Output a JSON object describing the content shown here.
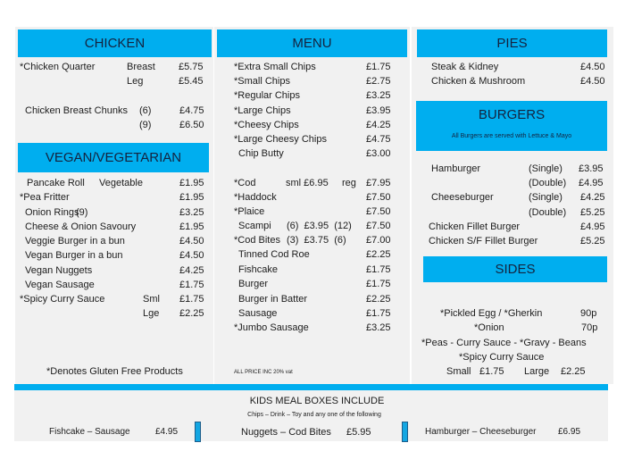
{
  "colors": {
    "accent": "#00aeef",
    "panel": "#f1f1f1"
  },
  "chicken": {
    "title": "CHICKEN",
    "quarter": {
      "name": "*Chicken Quarter",
      "breast": "Breast",
      "breast_price": "£5.75",
      "leg": "Leg",
      "leg_price": "£5.45"
    },
    "chunks": {
      "name": "Chicken Breast Chunks",
      "six": "(6)",
      "six_price": "£4.75",
      "nine": "(9)",
      "nine_price": "£6.50"
    }
  },
  "vegan": {
    "title": "VEGAN/VEGETARIAN",
    "items": [
      {
        "name": "Pancake Roll",
        "opt": "Vegetable",
        "price": "£1.95"
      },
      {
        "name": "*Pea Fritter",
        "price": "£1.95"
      },
      {
        "name": "Onion Rings",
        "opt": "(9)",
        "price": "£3.25"
      },
      {
        "name": "Cheese & Onion Savoury",
        "price": "£1.95"
      },
      {
        "name": "Veggie Burger in a bun",
        "price": "£4.50"
      },
      {
        "name": "Vegan Burger in a bun",
        "price": "£4.50"
      },
      {
        "name": "Vegan Nuggets",
        "price": "£4.25"
      },
      {
        "name": "Vegan Sausage",
        "price": "£1.75"
      },
      {
        "name": "*Spicy Curry Sauce",
        "opt": "Sml",
        "price": "£1.75"
      },
      {
        "opt": "Lge",
        "price": "£2.25"
      }
    ],
    "footnote": "*Denotes Gluten Free Products"
  },
  "menu": {
    "title": "MENU",
    "chips": [
      {
        "name": "*Extra Small Chips",
        "price": "£1.75"
      },
      {
        "name": "*Small Chips",
        "price": "£2.75"
      },
      {
        "name": "*Regular Chips",
        "price": "£3.25"
      },
      {
        "name": "*Large Chips",
        "price": "£3.95"
      },
      {
        "name": "*Cheesy Chips",
        "price": "£4.25"
      },
      {
        "name": "*Large Cheesy Chips",
        "price": "£4.75"
      },
      {
        "name": "Chip Butty",
        "price": "£3.00"
      }
    ],
    "fish": [
      {
        "name": "*Cod",
        "opt": "sml £6.95",
        "opt2": "reg",
        "price": "£7.95"
      },
      {
        "name": "*Haddock",
        "price": "£7.50"
      },
      {
        "name": "*Plaice",
        "price": "£7.50"
      },
      {
        "name": "Scampi",
        "opt": "(6)  £3.95  (12)",
        "price": "£7.50"
      },
      {
        "name": "*Cod Bites",
        "opt": "(3)  £3.75  (6)",
        "price": "£7.00"
      },
      {
        "name": "Tinned Cod Roe",
        "price": "£2.25"
      },
      {
        "name": "Fishcake",
        "price": "£1.75"
      },
      {
        "name": "Burger",
        "price": "£1.75"
      },
      {
        "name": "Burger in Batter",
        "price": "£2.25"
      },
      {
        "name": "Sausage",
        "price": "£1.75"
      },
      {
        "name": "*Jumbo Sausage",
        "price": "£3.25"
      }
    ],
    "vat_note": "ALL PRICE INC 20% vat"
  },
  "pies": {
    "title": "PIES",
    "items": [
      {
        "name": "Steak & Kidney",
        "price": "£4.50"
      },
      {
        "name": "Chicken & Mushroom",
        "price": "£4.50"
      }
    ]
  },
  "burgers": {
    "title": "BURGERS",
    "subtitle": "All Burgers are served with Lettuce & Mayo",
    "items": [
      {
        "name": "Hamburger",
        "opt": "(Single)",
        "price": "£3.95"
      },
      {
        "opt": "(Double)",
        "price": "£4.95"
      },
      {
        "name": "Cheeseburger",
        "opt": "(Single)",
        "price": "£4.25"
      },
      {
        "opt": "(Double)",
        "price": "£5.25"
      },
      {
        "name": "Chicken Fillet Burger",
        "price": "£4.95"
      },
      {
        "name": "Chicken S/F Fillet Burger",
        "price": "£5.25"
      }
    ]
  },
  "sides": {
    "title": "SIDES",
    "egg": "*Pickled Egg / *Gherkin",
    "egg_price": "90p",
    "onion": "*Onion",
    "onion_price": "70p",
    "line3": "*Peas - Curry Sauce - *Gravy - Beans",
    "curry": "*Spicy Curry Sauce",
    "small": "Small",
    "small_price": "£1.75",
    "large": "Large",
    "large_price": "£2.25"
  },
  "kids": {
    "title": "KIDS MEAL BOXES INCLUDE",
    "subtitle": "Chips – Drink – Toy  and any one of the following",
    "boxes": [
      {
        "name": "Fishcake – Sausage",
        "price": "£4.95"
      },
      {
        "name": "Nuggets – Cod Bites",
        "price": "£5.95"
      },
      {
        "name": "Hamburger – Cheeseburger",
        "price": "£6.95"
      }
    ]
  }
}
